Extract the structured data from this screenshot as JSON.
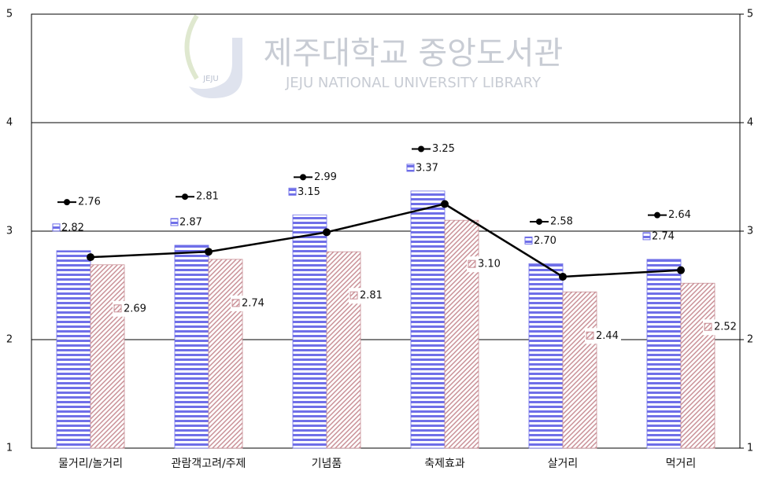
{
  "chart_data": {
    "type": "bar",
    "watermark_title": "제주대학교 중앙도서관",
    "watermark_subtitle": "JEJU NATIONAL UNIVERSITY LIBRARY",
    "watermark_logo": "JEJU",
    "categories": [
      "물거리/놀거리",
      "관람객고려/주제",
      "기념품",
      "축제효과",
      "살거리",
      "먹거리"
    ],
    "series": [
      {
        "type": "bar",
        "color": "#6f6fe8",
        "values": [
          2.82,
          2.87,
          3.15,
          3.37,
          2.7,
          2.74
        ],
        "value_labels": [
          "2.82",
          "2.87",
          "3.15",
          "3.37",
          "2.70",
          "2.74"
        ]
      },
      {
        "type": "bar",
        "color": "#c98f96",
        "values": [
          2.69,
          2.74,
          2.81,
          3.1,
          2.44,
          2.52
        ],
        "value_labels": [
          "2.69",
          "2.74",
          "2.81",
          "3.10",
          "2.44",
          "2.52"
        ]
      },
      {
        "type": "line",
        "color": "#000000",
        "values": [
          2.76,
          2.81,
          2.99,
          3.25,
          2.58,
          2.64
        ],
        "value_labels": [
          "2.76",
          "2.81",
          "2.99",
          "3.25",
          "2.58",
          "2.64"
        ]
      }
    ],
    "ylim": [
      1,
      5
    ],
    "yticks": [
      1,
      2,
      3,
      4,
      5
    ],
    "y2lim": [
      1,
      5
    ],
    "y2ticks": [
      1,
      2,
      3,
      4,
      5
    ],
    "grid": true
  }
}
